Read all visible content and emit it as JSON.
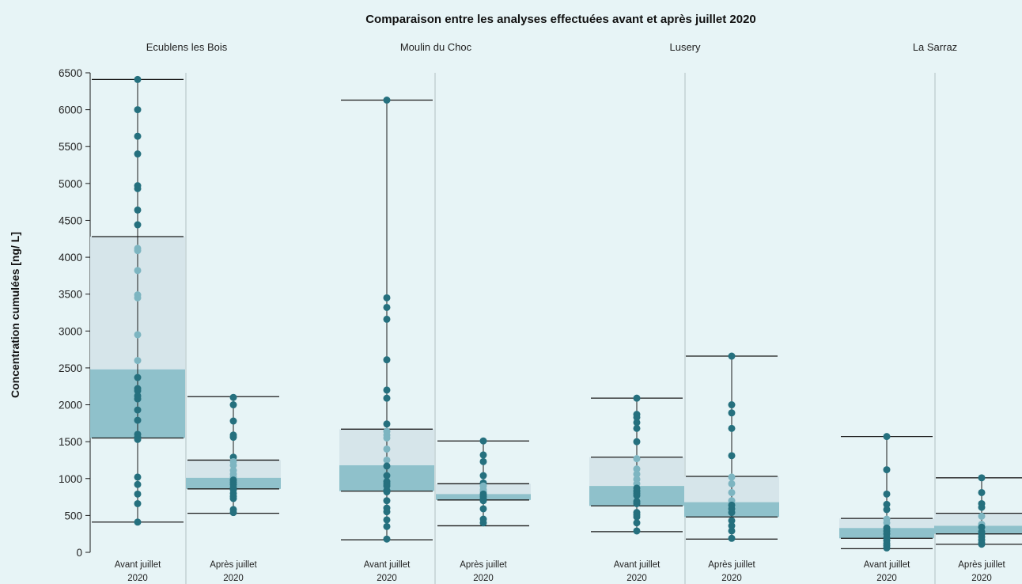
{
  "chart_data": {
    "type": "box",
    "title": "Comparaison entre les analyses effectuées avant et après juillet 2020",
    "ylabel": "Concentration cumulées [ng/ L]",
    "ylim": [
      0,
      6500
    ],
    "yticks": [
      0,
      500,
      1000,
      1500,
      2000,
      2500,
      3000,
      3500,
      4000,
      4500,
      5000,
      5500,
      6000,
      6500
    ],
    "colors": {
      "q1_box": "#8fc1cb",
      "q3_box": "#d6e5ea",
      "point_dark": "#25707e",
      "point_light": "#7db5c1",
      "line": "#1a1a1a",
      "divider": "#c3d1d4"
    },
    "groups": [
      {
        "site": "Ecublens les Bois",
        "boxes": [
          {
            "label_line1": "Avant juillet",
            "label_line2": "2020",
            "min": 410,
            "q1": 1550,
            "median": 2480,
            "q3": 4280,
            "max": 6410,
            "points": [
              6410,
              6000,
              5640,
              5400,
              4970,
              4930,
              4640,
              4440,
              4120,
              4090,
              3820,
              3490,
              3450,
              2950,
              2600,
              2370,
              2220,
              2190,
              2120,
              2080,
              1930,
              1790,
              1600,
              1560,
              1530,
              1020,
              920,
              790,
              660,
              410
            ]
          },
          {
            "label_line1": "Après juillet",
            "label_line2": "2020",
            "min": 530,
            "q1": 860,
            "median": 1010,
            "q3": 1250,
            "max": 2110,
            "points": [
              2100,
              2000,
              1780,
              1590,
              1560,
              1290,
              1230,
              1180,
              1110,
              1060,
              1020,
              980,
              950,
              920,
              880,
              850,
              800,
              760,
              730,
              580,
              540
            ]
          }
        ]
      },
      {
        "site": "Moulin du Choc",
        "boxes": [
          {
            "label_line1": "Avant juillet",
            "label_line2": "2020",
            "min": 170,
            "q1": 830,
            "median": 1180,
            "q3": 1670,
            "max": 6130,
            "points": [
              6130,
              3450,
              3320,
              3160,
              2610,
              2200,
              2090,
              1740,
              1640,
              1590,
              1550,
              1400,
              1250,
              1170,
              1040,
              960,
              930,
              900,
              840,
              820,
              700,
              600,
              550,
              440,
              350,
              180
            ]
          },
          {
            "label_line1": "Après juillet",
            "label_line2": "2020",
            "min": 360,
            "q1": 710,
            "median": 790,
            "q3": 930,
            "max": 1510,
            "points": [
              1510,
              1320,
              1230,
              1040,
              940,
              900,
              850,
              820,
              790,
              760,
              730,
              700,
              590,
              450,
              400
            ]
          }
        ]
      },
      {
        "site": "Lusery",
        "boxes": [
          {
            "label_line1": "Avant juillet",
            "label_line2": "2020",
            "min": 280,
            "q1": 630,
            "median": 900,
            "q3": 1290,
            "max": 2090,
            "points": [
              2090,
              1870,
              1830,
              1760,
              1680,
              1500,
              1270,
              1130,
              1060,
              990,
              930,
              870,
              830,
              800,
              770,
              690,
              660,
              540,
              510,
              480,
              400,
              290
            ]
          },
          {
            "label_line1": "Après juillet",
            "label_line2": "2020",
            "min": 180,
            "q1": 480,
            "median": 680,
            "q3": 1030,
            "max": 2660,
            "points": [
              2660,
              2000,
              1890,
              1680,
              1310,
              1020,
              930,
              810,
              700,
              640,
              590,
              540,
              430,
              360,
              290,
              190
            ]
          }
        ]
      },
      {
        "site": "La Sarraz",
        "boxes": [
          {
            "label_line1": "Avant juillet",
            "label_line2": "2020",
            "min": 50,
            "q1": 190,
            "median": 330,
            "q3": 460,
            "max": 1570,
            "points": [
              1570,
              1120,
              790,
              650,
              580,
              450,
              400,
              330,
              290,
              250,
              200,
              160,
              120,
              90,
              60
            ]
          },
          {
            "label_line1": "Après juillet",
            "label_line2": "2020",
            "min": 110,
            "q1": 250,
            "median": 360,
            "q3": 530,
            "max": 1010,
            "points": [
              1010,
              810,
              660,
              610,
              490,
              380,
              340,
              280,
              250,
              210,
              170,
              130,
              110
            ]
          }
        ]
      }
    ]
  }
}
